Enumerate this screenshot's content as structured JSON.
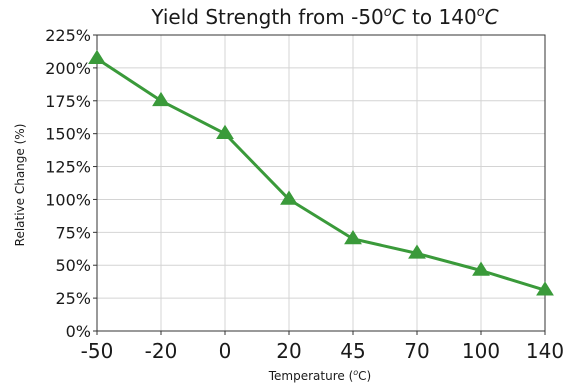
{
  "chart_data": {
    "type": "line",
    "title_prefix": "Yield Strength from -50",
    "title_mid_unit": "o",
    "title_mid_c": "C",
    "title_middle": " to 140",
    "title_end_unit": "o",
    "title_end_c": "C",
    "xlabel_prefix": "Temperature (",
    "xlabel_unit": "o",
    "xlabel_suffix": "C)",
    "ylabel": "Relative Change (%)",
    "x": [
      -50,
      -20,
      0,
      20,
      45,
      70,
      100,
      140
    ],
    "x_tick_labels": [
      "-50",
      "-20",
      "0",
      "20",
      "45",
      "70",
      "100",
      "140"
    ],
    "series": [
      {
        "values": [
          207,
          175,
          150,
          100,
          70,
          59,
          46,
          31
        ],
        "color": "#3a9a3a",
        "marker": "triangle-up"
      }
    ],
    "y_ticks": [
      0,
      25,
      50,
      75,
      100,
      125,
      150,
      175,
      200,
      225
    ],
    "y_tick_labels": [
      "0%",
      "25%",
      "50%",
      "75%",
      "100%",
      "125%",
      "150%",
      "175%",
      "200%",
      "225%"
    ],
    "ylim": [
      0,
      225
    ],
    "x_spacing": "categorical",
    "grid": true
  }
}
